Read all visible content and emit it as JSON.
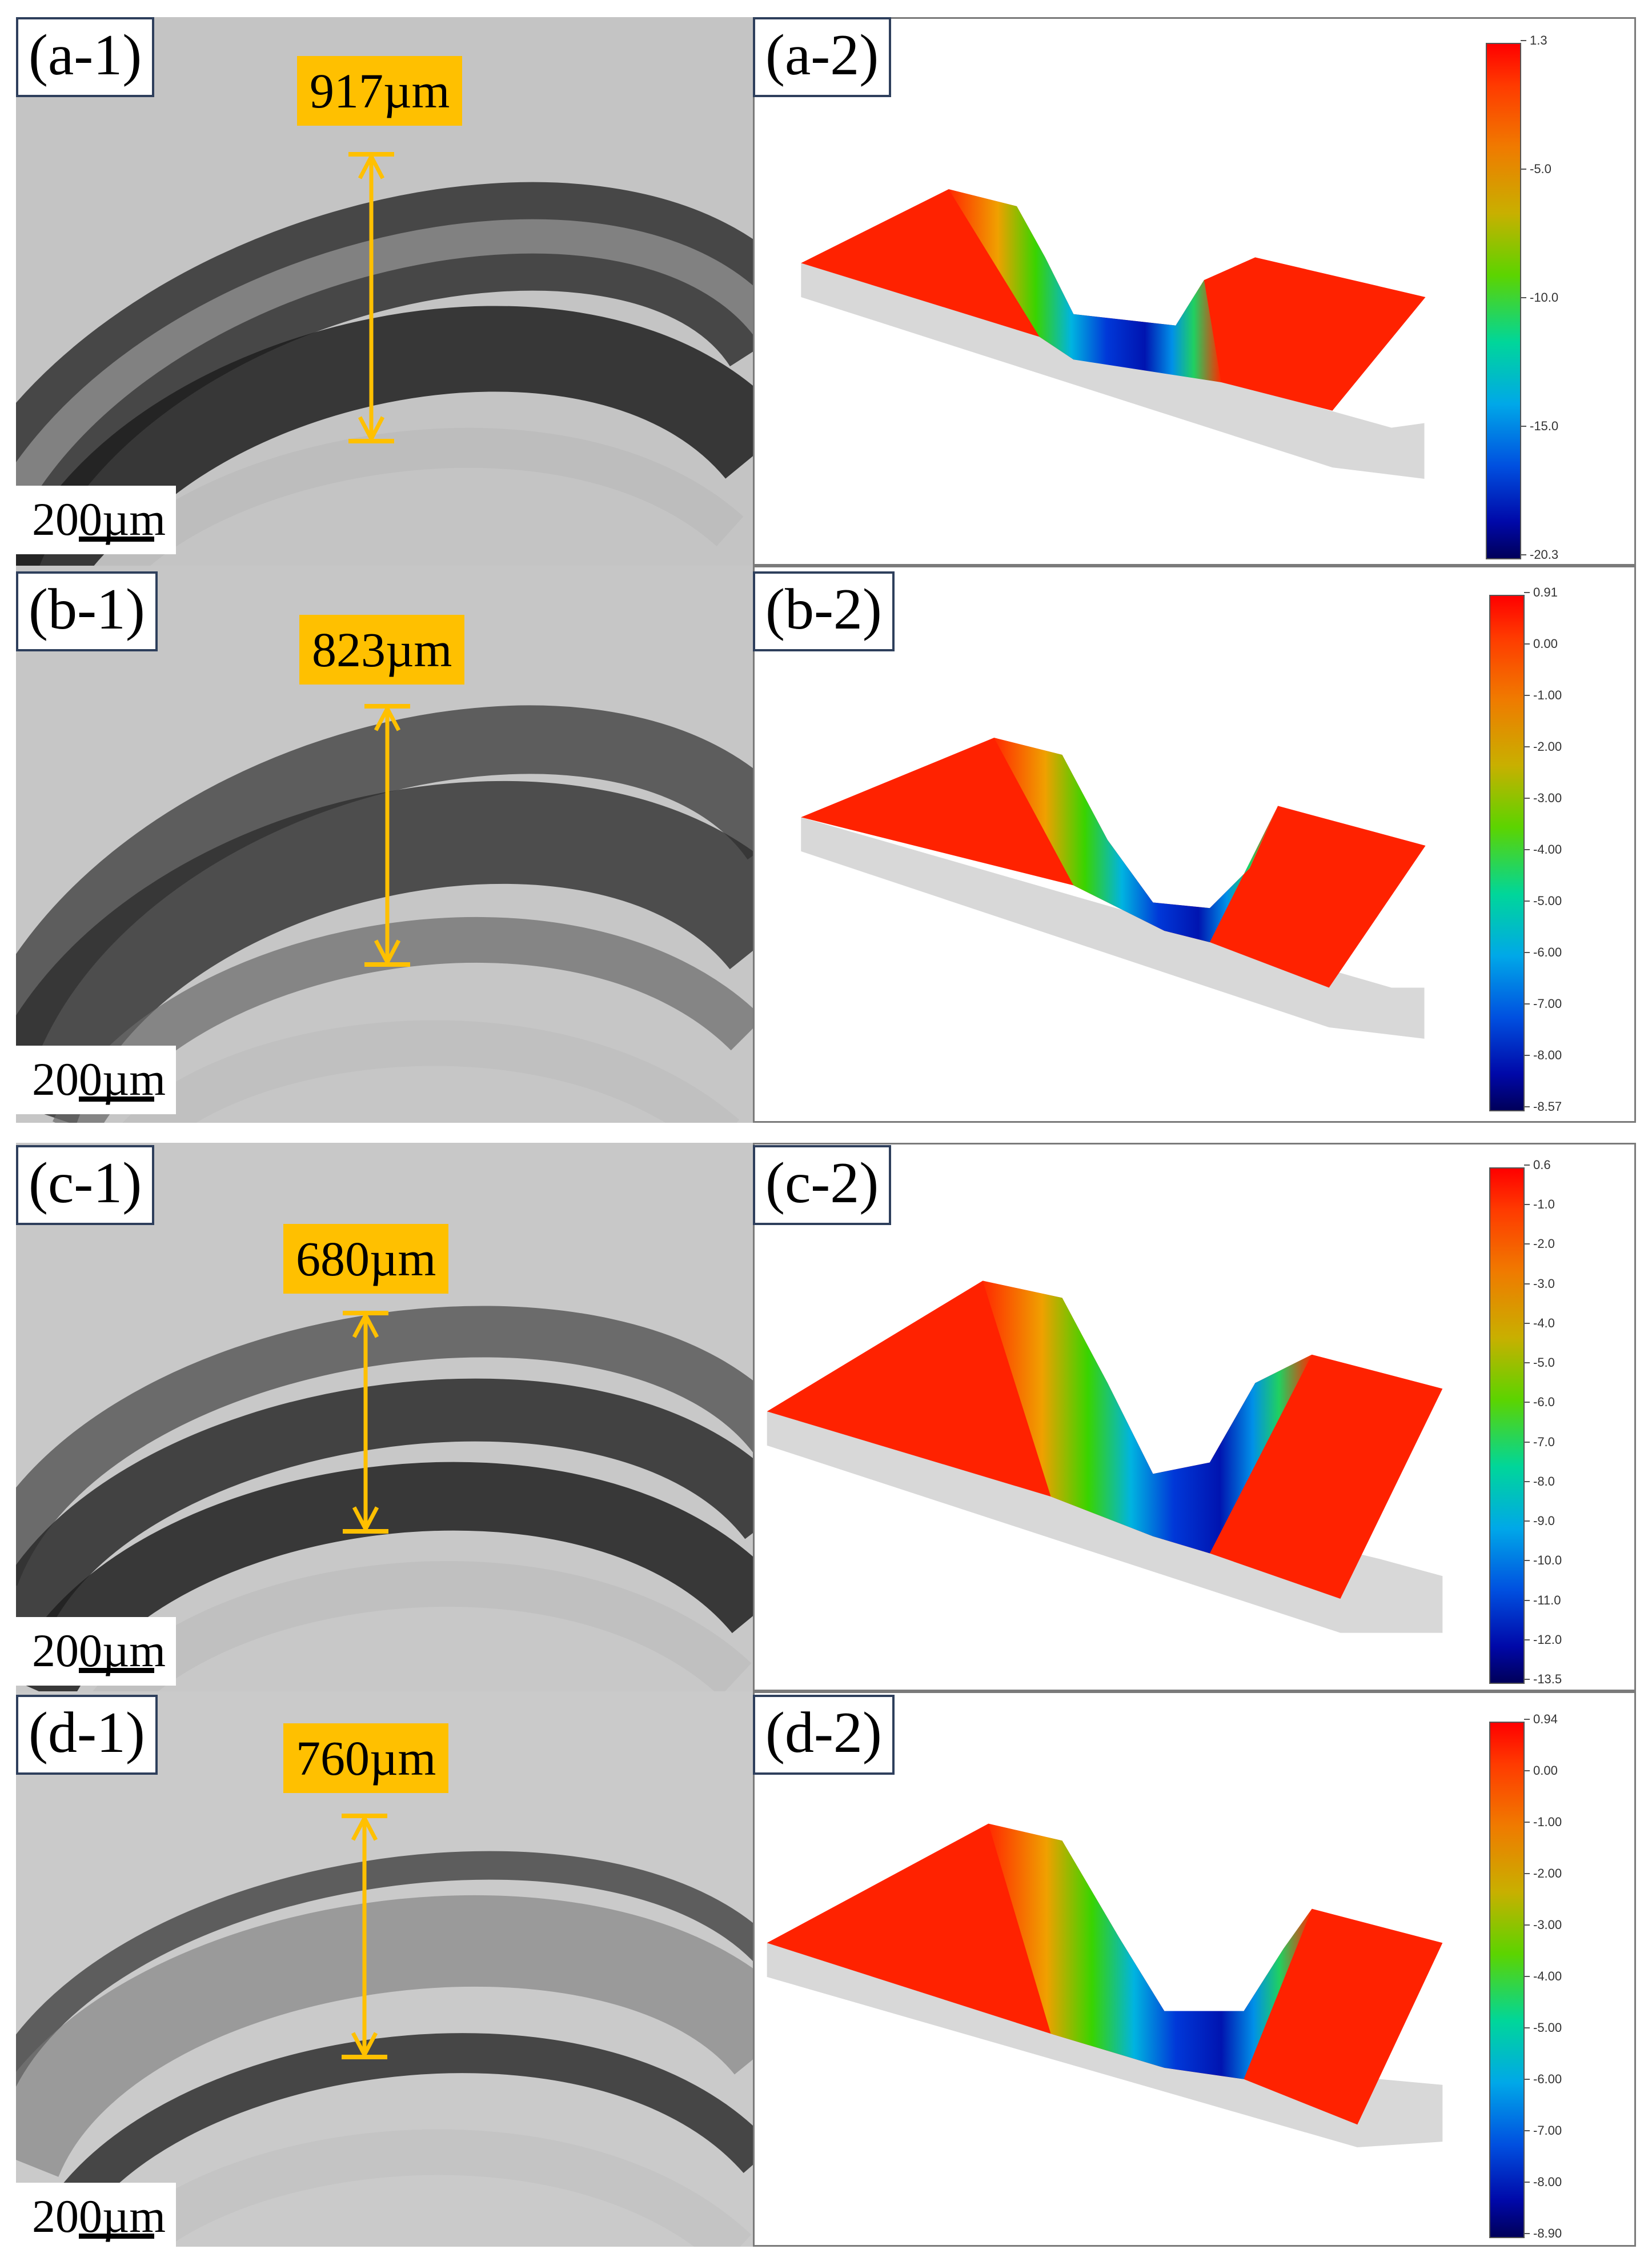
{
  "panels": [
    {
      "id": "a",
      "left_label": "(a-1)",
      "right_label": "(a-2)",
      "width_label": "917µm",
      "scale_label": "200µm",
      "colorbar_ticks": [
        "1.3",
        "-5.0",
        "-10.0",
        "-15.0",
        "-20.3"
      ]
    },
    {
      "id": "b",
      "left_label": "(b-1)",
      "right_label": "(b-2)",
      "width_label": "823µm",
      "scale_label": "200µm",
      "colorbar_ticks": [
        "0.91",
        "0.00",
        "-1.00",
        "-2.00",
        "-3.00",
        "-4.00",
        "-5.00",
        "-6.00",
        "-7.00",
        "-8.00",
        "-8.57"
      ]
    },
    {
      "id": "c",
      "left_label": "(c-1)",
      "right_label": "(c-2)",
      "width_label": "680µm",
      "scale_label": "200µm",
      "colorbar_ticks": [
        "0.6",
        "-1.0",
        "-2.0",
        "-3.0",
        "-4.0",
        "-5.0",
        "-6.0",
        "-7.0",
        "-8.0",
        "-9.0",
        "-10.0",
        "-11.0",
        "-12.0",
        "-13.5"
      ]
    },
    {
      "id": "d",
      "left_label": "(d-1)",
      "right_label": "(d-2)",
      "width_label": "760µm",
      "scale_label": "200µm",
      "colorbar_ticks": [
        "0.94",
        "0.00",
        "-1.00",
        "-2.00",
        "-3.00",
        "-4.00",
        "-5.00",
        "-6.00",
        "-7.00",
        "-8.00",
        "-8.90"
      ]
    }
  ]
}
